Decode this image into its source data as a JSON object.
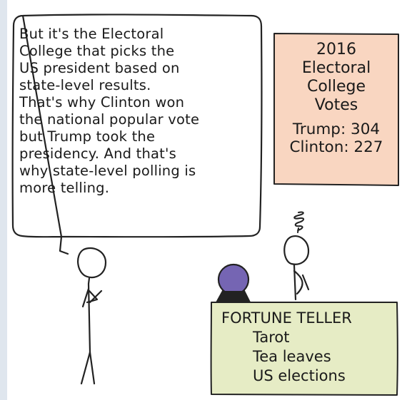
{
  "speech_bubble": {
    "lines": [
      "But it's the Electoral",
      "College that picks the",
      "US president based on",
      "state-level results.",
      "That's why Clinton won",
      "the national popular vote",
      "but Trump took the",
      "presidency. And that's",
      "why state-level polling is",
      "more telling."
    ]
  },
  "votes_box": {
    "title_lines": [
      "2016",
      "Electoral",
      "College",
      "Votes"
    ],
    "results": [
      {
        "label": "Trump: 304"
      },
      {
        "label": "Clinton: 227"
      }
    ],
    "colors": {
      "fill": "#f9d6c1",
      "stroke": "#222222"
    }
  },
  "fortune_sign": {
    "title": "FORTUNE TELLER",
    "items": [
      "Tarot",
      "Tea leaves",
      "US elections"
    ],
    "colors": {
      "fill": "#e6ecc5",
      "stroke": "#222222"
    }
  },
  "crystal_ball": {
    "color": "#7565b3"
  }
}
